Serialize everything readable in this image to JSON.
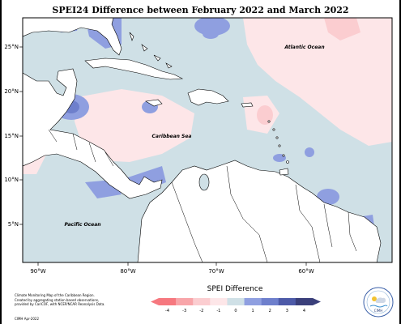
{
  "title": "SPEI24 Difference between February 2022 and March 2022",
  "ocean_labels": {
    "atlantic": "Atlantic Ocean",
    "caribbean": "Caribbean Sea",
    "pacific": "Pacific Ocean"
  },
  "axes": {
    "lon_ticks": [
      "90°W",
      "80°W",
      "70°W",
      "60°W"
    ],
    "lat_ticks": [
      "25°N",
      "20°N",
      "15°N",
      "10°N",
      "5°N"
    ]
  },
  "legend": {
    "title": "SPEI Difference",
    "ticks": [
      "-4",
      "-3",
      "-2",
      "-1",
      "0",
      "1",
      "2",
      "3",
      "4"
    ],
    "colors": [
      "#f6787f",
      "#f8a5a9",
      "#fbcdd0",
      "#fde6e8",
      "#cfe0e6",
      "#8f9fe0",
      "#6e7fcc",
      "#4d5aa8",
      "#3a3f7a"
    ]
  },
  "credit": {
    "lines": [
      "Climate Monitoring Map of the Caribbean Region.",
      "Created by aggregating station based observations,",
      "provided by CariCOF, with NCEP/NCAR Reanalysis Data."
    ],
    "date": "CIMH Apr-2022"
  },
  "logo": {
    "text": "CIMH"
  },
  "colors": {
    "land": "#ffffff",
    "no_change": "#cfe0e6",
    "slight_dry": "#fde6e8",
    "wet": "#8f9fe0",
    "wetter": "#6e7fcc",
    "dry": "#fbcdd0"
  }
}
